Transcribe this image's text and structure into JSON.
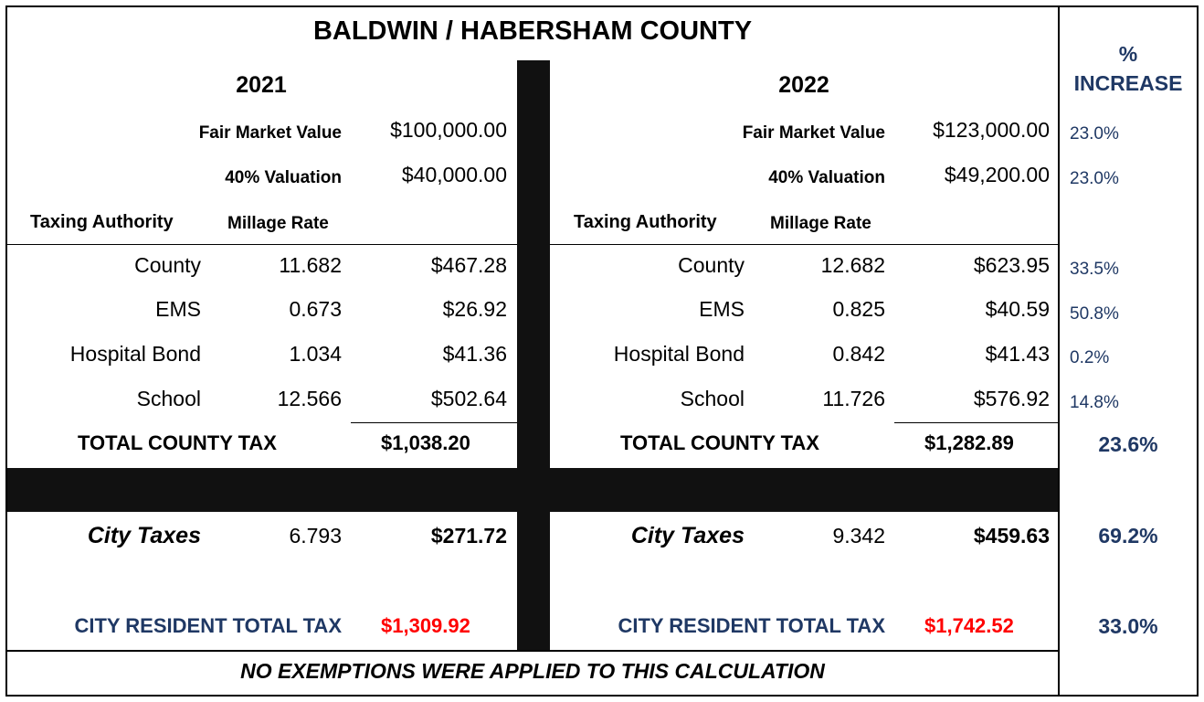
{
  "title": "BALDWIN / HABERSHAM COUNTY",
  "pct_header": {
    "line1": "%",
    "line2": "INCREASE"
  },
  "labels": {
    "fair_market_value": "Fair Market Value",
    "valuation": "40% Valuation",
    "taxing_authority": "Taxing Authority",
    "millage_rate": "Millage Rate",
    "total_county_tax": "TOTAL COUNTY TAX",
    "city_taxes": "City Taxes",
    "city_resident_total_tax": "CITY RESIDENT TOTAL TAX"
  },
  "years": [
    {
      "year": "2021",
      "fair_market_value": "$100,000.00",
      "valuation": "$40,000.00",
      "rows": [
        {
          "authority": "County",
          "millage": "11.682",
          "amount": "$467.28"
        },
        {
          "authority": "EMS",
          "millage": "0.673",
          "amount": "$26.92"
        },
        {
          "authority": "Hospital Bond",
          "millage": "1.034",
          "amount": "$41.36"
        },
        {
          "authority": "School",
          "millage": "12.566",
          "amount": "$502.64"
        }
      ],
      "total_county_tax": "$1,038.20",
      "city_millage": "6.793",
      "city_amount": "$271.72",
      "city_resident_total": "$1,309.92"
    },
    {
      "year": "2022",
      "fair_market_value": "$123,000.00",
      "valuation": "$49,200.00",
      "rows": [
        {
          "authority": "County",
          "millage": "12.682",
          "amount": "$623.95"
        },
        {
          "authority": "EMS",
          "millage": "0.825",
          "amount": "$40.59"
        },
        {
          "authority": "Hospital Bond",
          "millage": "0.842",
          "amount": "$41.43"
        },
        {
          "authority": "School",
          "millage": "11.726",
          "amount": "$576.92"
        }
      ],
      "total_county_tax": "$1,282.89",
      "city_millage": "9.342",
      "city_amount": "$459.63",
      "city_resident_total": "$1,742.52"
    }
  ],
  "increase": {
    "fair_market_value": "23.0%",
    "valuation": "23.0%",
    "rows": [
      "33.5%",
      "50.8%",
      "0.2%",
      "14.8%"
    ],
    "total_county_tax": "23.6%",
    "city_taxes": "69.2%",
    "city_resident_total": "33.0%"
  },
  "footer": "NO EXEMPTIONS WERE APPLIED TO THIS CALCULATION"
}
